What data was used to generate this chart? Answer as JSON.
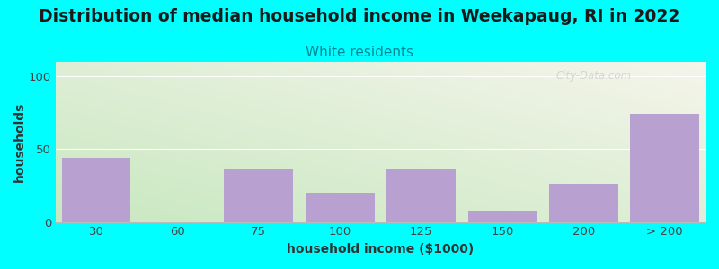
{
  "title": "Distribution of median household income in Weekapaug, RI in 2022",
  "subtitle": "White residents",
  "xlabel": "household income ($1000)",
  "ylabel": "households",
  "background_color": "#00FFFF",
  "bar_color": "#b8a0d0",
  "bar_alpha": 1.0,
  "categories": [
    "30",
    "60",
    "75",
    "100",
    "125",
    "150",
    "200",
    "> 200"
  ],
  "values": [
    44,
    0,
    36,
    20,
    36,
    8,
    26,
    74
  ],
  "ylim": [
    0,
    110
  ],
  "yticks": [
    0,
    50,
    100
  ],
  "title_fontsize": 13.5,
  "subtitle_fontsize": 11,
  "subtitle_color": "#008899",
  "axis_label_fontsize": 10,
  "tick_fontsize": 9.5,
  "watermark": "City-Data.com",
  "gradient_left": "#c8e8c0",
  "gradient_right": "#f0f0e8"
}
